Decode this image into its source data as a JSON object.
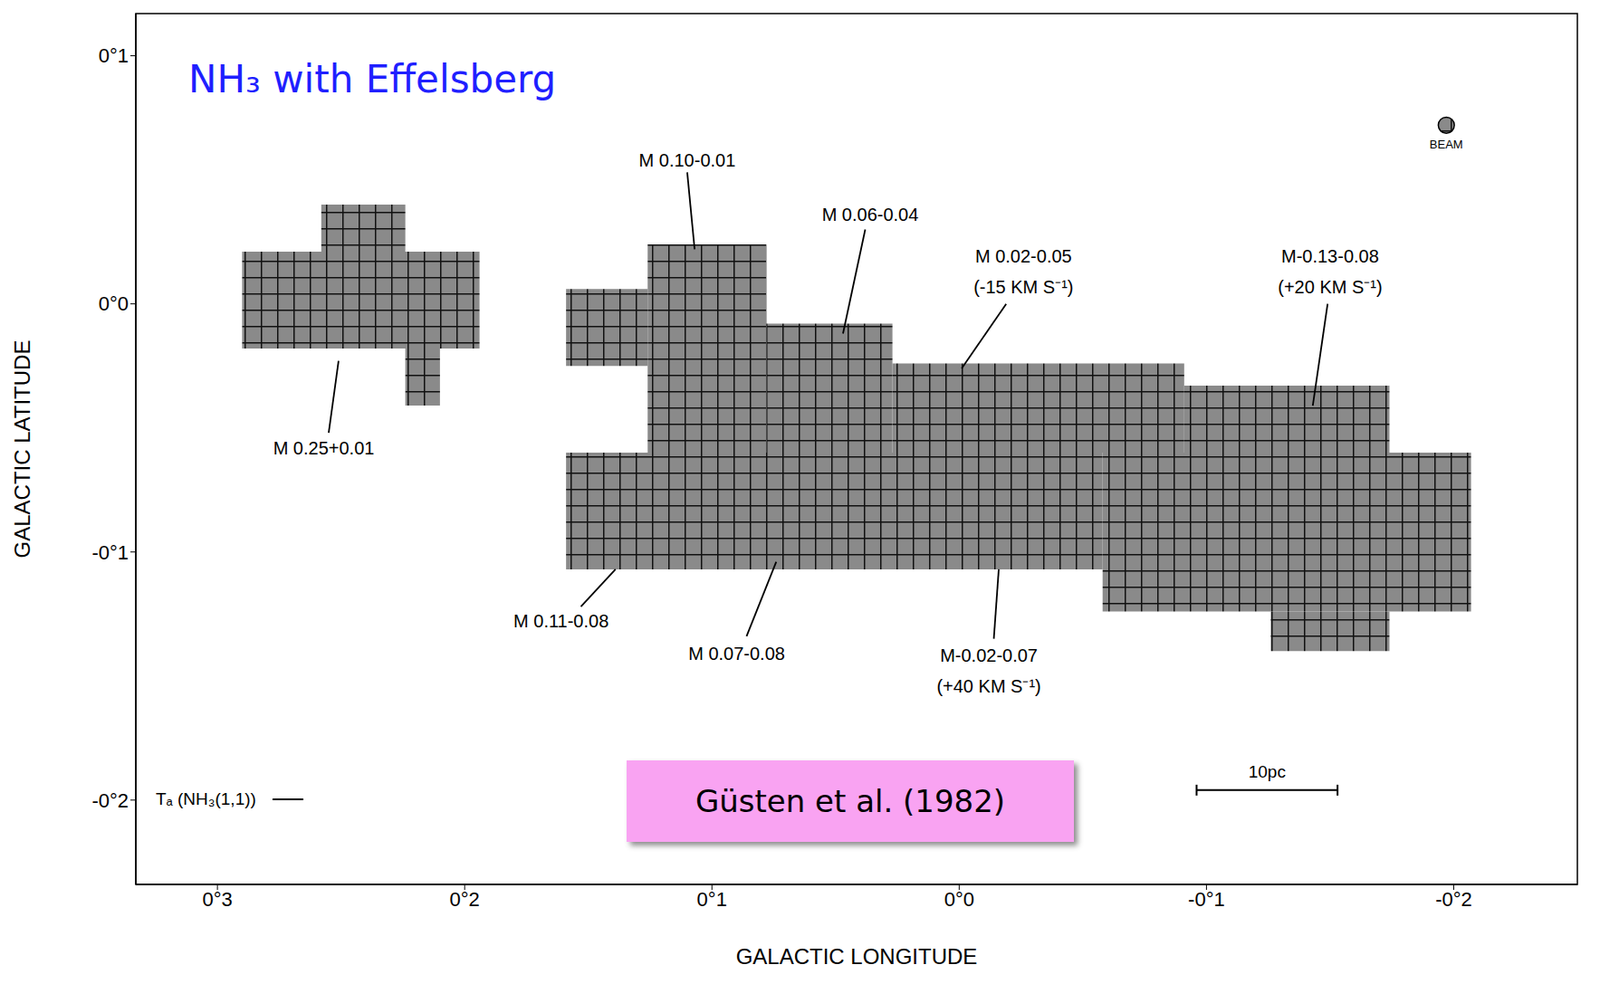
{
  "chart_data": {
    "type": "map",
    "title": "NH₃ with Effelsberg",
    "x_label": "GALACTIC LONGITUDE",
    "y_label": "GALACTIC LATITUDE",
    "xlim": [
      0.333,
      -0.25
    ],
    "ylim": [
      -0.234,
      0.117
    ],
    "xticks": [
      {
        "value": 0.3,
        "label": "0°3"
      },
      {
        "value": 0.2,
        "label": "0°2"
      },
      {
        "value": 0.1,
        "label": "0°1"
      },
      {
        "value": 0,
        "label": "0°0"
      },
      {
        "value": -0.1,
        "label": "-0°1"
      },
      {
        "value": -0.2,
        "label": "-0°2"
      }
    ],
    "yticks": [
      {
        "value": 0.1,
        "label": "0°1"
      },
      {
        "value": 0,
        "label": "0°0"
      },
      {
        "value": -0.1,
        "label": "-0°1"
      },
      {
        "value": -0.2,
        "label": "-0°2"
      }
    ],
    "grid": false,
    "color": "#8a8a8a",
    "mapped_regions": [
      {
        "l": [
          0.29,
          0.194
        ],
        "b": [
          0.021,
          -0.018
        ]
      },
      {
        "l": [
          0.258,
          0.224
        ],
        "b": [
          0.04,
          0.021
        ]
      },
      {
        "l": [
          0.224,
          0.21
        ],
        "b": [
          -0.018,
          -0.041
        ]
      },
      {
        "l": [
          0.159,
          0.126
        ],
        "b": [
          0.006,
          -0.025
        ]
      },
      {
        "l": [
          0.126,
          0.078
        ],
        "b": [
          0.024,
          -0.06
        ]
      },
      {
        "l": [
          0.078,
          0.027
        ],
        "b": [
          -0.008,
          -0.06
        ]
      },
      {
        "l": [
          0.027,
          -0.091
        ],
        "b": [
          -0.024,
          -0.06
        ]
      },
      {
        "l": [
          -0.091,
          -0.174
        ],
        "b": [
          -0.033,
          -0.06
        ]
      },
      {
        "l": [
          0.159,
          -0.058
        ],
        "b": [
          -0.06,
          -0.107
        ]
      },
      {
        "l": [
          -0.058,
          -0.207
        ],
        "b": [
          -0.06,
          -0.124
        ]
      },
      {
        "l": [
          -0.126,
          -0.174
        ],
        "b": [
          -0.124,
          -0.14
        ]
      }
    ],
    "sources": [
      {
        "label": [
          "M 0.10-0.01"
        ],
        "at": [
          0.11,
          0.058
        ],
        "line": [
          [
            0.11,
            0.053
          ],
          [
            0.107,
            0.022
          ]
        ]
      },
      {
        "label": [
          "M 0.06-0.04"
        ],
        "at": [
          0.036,
          0.036
        ],
        "line": [
          [
            0.038,
            0.03
          ],
          [
            0.047,
            -0.012
          ]
        ]
      },
      {
        "label": [
          "M 0.02-0.05",
          "(-15 KM S⁻¹)"
        ],
        "at": [
          -0.026,
          0.013
        ],
        "line": [
          [
            -0.019,
            0.0
          ],
          [
            -0.001,
            -0.026
          ]
        ]
      },
      {
        "label": [
          "M-0.13-0.08",
          "(+20 KM S⁻¹)"
        ],
        "at": [
          -0.15,
          0.013
        ],
        "line": [
          [
            -0.149,
            0.0
          ],
          [
            -0.143,
            -0.041
          ]
        ]
      },
      {
        "label": [
          "M 0.25+0.01"
        ],
        "at": [
          0.257,
          -0.058
        ],
        "line": [
          [
            0.255,
            -0.052
          ],
          [
            0.251,
            -0.023
          ]
        ]
      },
      {
        "label": [
          "M 0.11-0.08"
        ],
        "at": [
          0.161,
          -0.128
        ],
        "line": [
          [
            0.153,
            -0.122
          ],
          [
            0.139,
            -0.107
          ]
        ]
      },
      {
        "label": [
          "M 0.07-0.08"
        ],
        "at": [
          0.09,
          -0.141
        ],
        "line": [
          [
            0.086,
            -0.134
          ],
          [
            0.074,
            -0.104
          ]
        ]
      },
      {
        "label": [
          "M-0.02-0.07",
          "(+40 KM S⁻¹)"
        ],
        "at": [
          -0.012,
          -0.148
        ],
        "line": [
          [
            -0.014,
            -0.135
          ],
          [
            -0.016,
            -0.107
          ]
        ]
      }
    ],
    "beam": {
      "label": "BEAM",
      "l": -0.197,
      "b": 0.072,
      "diameter": 0.0065
    },
    "scale_bar": {
      "label": "10pc",
      "from": -0.096,
      "to": -0.153,
      "b": -0.196
    },
    "key": {
      "label": "Tₐ (NH₃(1,1))"
    },
    "citation": "Güsten et al. (1982)"
  }
}
